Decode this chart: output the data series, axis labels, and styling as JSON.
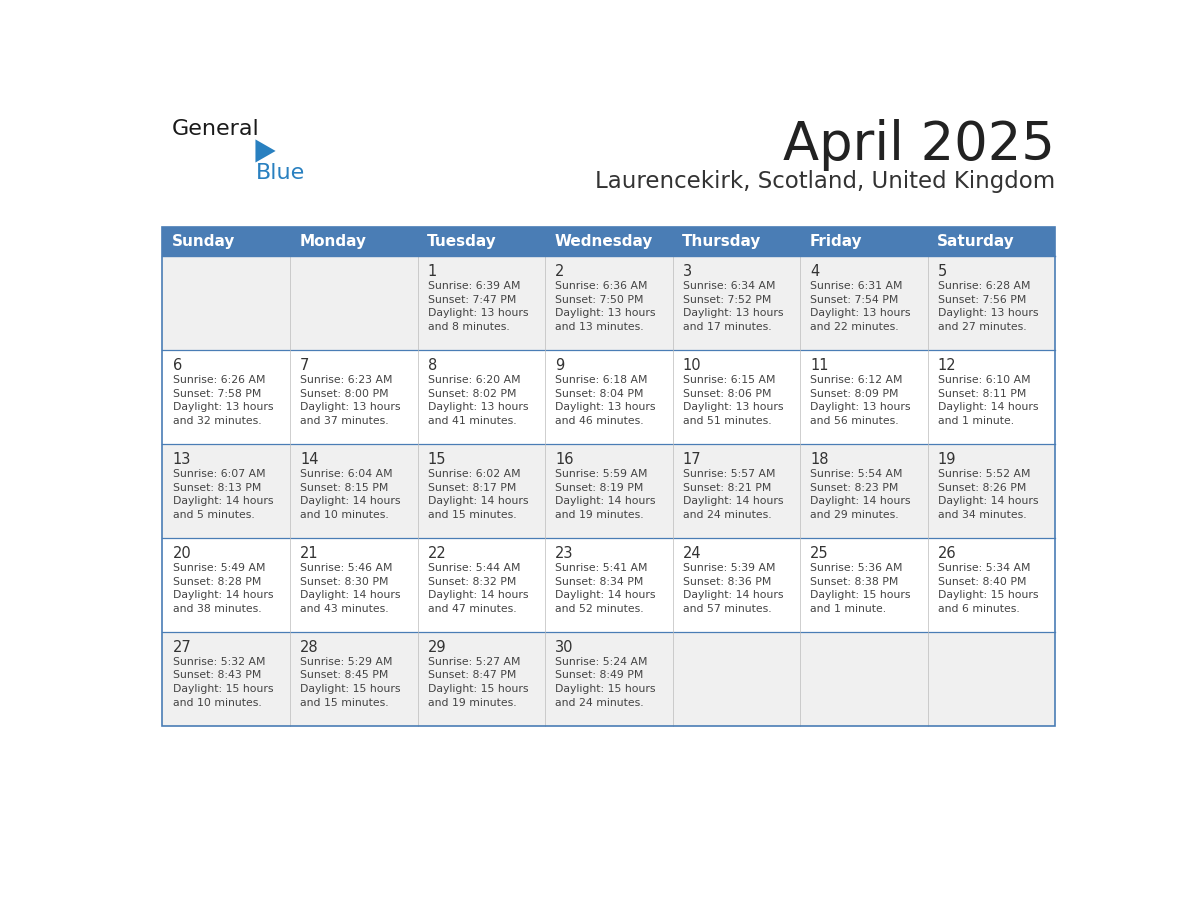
{
  "title": "April 2025",
  "subtitle": "Laurencekirk, Scotland, United Kingdom",
  "days_of_week": [
    "Sunday",
    "Monday",
    "Tuesday",
    "Wednesday",
    "Thursday",
    "Friday",
    "Saturday"
  ],
  "header_bg_color": "#4A7DB5",
  "header_text_color": "#FFFFFF",
  "cell_bg_even": "#F0F0F0",
  "cell_bg_odd": "#FFFFFF",
  "cell_border_color": "#4A7DB5",
  "day_number_color": "#333333",
  "cell_text_color": "#444444",
  "title_color": "#222222",
  "subtitle_color": "#333333",
  "logo_general_color": "#1a1a1a",
  "logo_blue_color": "#2980C0",
  "weeks": [
    [
      {
        "day": "",
        "info": ""
      },
      {
        "day": "",
        "info": ""
      },
      {
        "day": "1",
        "info": "Sunrise: 6:39 AM\nSunset: 7:47 PM\nDaylight: 13 hours\nand 8 minutes."
      },
      {
        "day": "2",
        "info": "Sunrise: 6:36 AM\nSunset: 7:50 PM\nDaylight: 13 hours\nand 13 minutes."
      },
      {
        "day": "3",
        "info": "Sunrise: 6:34 AM\nSunset: 7:52 PM\nDaylight: 13 hours\nand 17 minutes."
      },
      {
        "day": "4",
        "info": "Sunrise: 6:31 AM\nSunset: 7:54 PM\nDaylight: 13 hours\nand 22 minutes."
      },
      {
        "day": "5",
        "info": "Sunrise: 6:28 AM\nSunset: 7:56 PM\nDaylight: 13 hours\nand 27 minutes."
      }
    ],
    [
      {
        "day": "6",
        "info": "Sunrise: 6:26 AM\nSunset: 7:58 PM\nDaylight: 13 hours\nand 32 minutes."
      },
      {
        "day": "7",
        "info": "Sunrise: 6:23 AM\nSunset: 8:00 PM\nDaylight: 13 hours\nand 37 minutes."
      },
      {
        "day": "8",
        "info": "Sunrise: 6:20 AM\nSunset: 8:02 PM\nDaylight: 13 hours\nand 41 minutes."
      },
      {
        "day": "9",
        "info": "Sunrise: 6:18 AM\nSunset: 8:04 PM\nDaylight: 13 hours\nand 46 minutes."
      },
      {
        "day": "10",
        "info": "Sunrise: 6:15 AM\nSunset: 8:06 PM\nDaylight: 13 hours\nand 51 minutes."
      },
      {
        "day": "11",
        "info": "Sunrise: 6:12 AM\nSunset: 8:09 PM\nDaylight: 13 hours\nand 56 minutes."
      },
      {
        "day": "12",
        "info": "Sunrise: 6:10 AM\nSunset: 8:11 PM\nDaylight: 14 hours\nand 1 minute."
      }
    ],
    [
      {
        "day": "13",
        "info": "Sunrise: 6:07 AM\nSunset: 8:13 PM\nDaylight: 14 hours\nand 5 minutes."
      },
      {
        "day": "14",
        "info": "Sunrise: 6:04 AM\nSunset: 8:15 PM\nDaylight: 14 hours\nand 10 minutes."
      },
      {
        "day": "15",
        "info": "Sunrise: 6:02 AM\nSunset: 8:17 PM\nDaylight: 14 hours\nand 15 minutes."
      },
      {
        "day": "16",
        "info": "Sunrise: 5:59 AM\nSunset: 8:19 PM\nDaylight: 14 hours\nand 19 minutes."
      },
      {
        "day": "17",
        "info": "Sunrise: 5:57 AM\nSunset: 8:21 PM\nDaylight: 14 hours\nand 24 minutes."
      },
      {
        "day": "18",
        "info": "Sunrise: 5:54 AM\nSunset: 8:23 PM\nDaylight: 14 hours\nand 29 minutes."
      },
      {
        "day": "19",
        "info": "Sunrise: 5:52 AM\nSunset: 8:26 PM\nDaylight: 14 hours\nand 34 minutes."
      }
    ],
    [
      {
        "day": "20",
        "info": "Sunrise: 5:49 AM\nSunset: 8:28 PM\nDaylight: 14 hours\nand 38 minutes."
      },
      {
        "day": "21",
        "info": "Sunrise: 5:46 AM\nSunset: 8:30 PM\nDaylight: 14 hours\nand 43 minutes."
      },
      {
        "day": "22",
        "info": "Sunrise: 5:44 AM\nSunset: 8:32 PM\nDaylight: 14 hours\nand 47 minutes."
      },
      {
        "day": "23",
        "info": "Sunrise: 5:41 AM\nSunset: 8:34 PM\nDaylight: 14 hours\nand 52 minutes."
      },
      {
        "day": "24",
        "info": "Sunrise: 5:39 AM\nSunset: 8:36 PM\nDaylight: 14 hours\nand 57 minutes."
      },
      {
        "day": "25",
        "info": "Sunrise: 5:36 AM\nSunset: 8:38 PM\nDaylight: 15 hours\nand 1 minute."
      },
      {
        "day": "26",
        "info": "Sunrise: 5:34 AM\nSunset: 8:40 PM\nDaylight: 15 hours\nand 6 minutes."
      }
    ],
    [
      {
        "day": "27",
        "info": "Sunrise: 5:32 AM\nSunset: 8:43 PM\nDaylight: 15 hours\nand 10 minutes."
      },
      {
        "day": "28",
        "info": "Sunrise: 5:29 AM\nSunset: 8:45 PM\nDaylight: 15 hours\nand 15 minutes."
      },
      {
        "day": "29",
        "info": "Sunrise: 5:27 AM\nSunset: 8:47 PM\nDaylight: 15 hours\nand 19 minutes."
      },
      {
        "day": "30",
        "info": "Sunrise: 5:24 AM\nSunset: 8:49 PM\nDaylight: 15 hours\nand 24 minutes."
      },
      {
        "day": "",
        "info": ""
      },
      {
        "day": "",
        "info": ""
      },
      {
        "day": "",
        "info": ""
      }
    ]
  ]
}
